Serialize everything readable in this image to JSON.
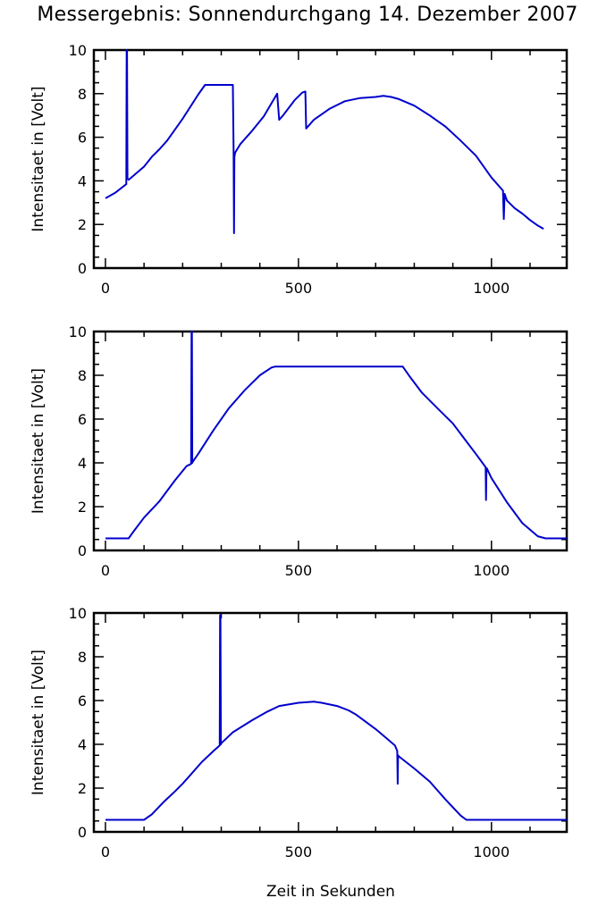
{
  "title": "Messergebnis: Sonnendurchgang 14. Dezember 2007",
  "xlabel": "Zeit in Sekunden",
  "colors": {
    "series": "#0000cc",
    "axes": "#000000"
  },
  "chart_data": [
    {
      "type": "line",
      "ylabel": "Intensitaet in [Volt]",
      "xlim": [
        -30,
        1195
      ],
      "ylim": [
        0,
        10
      ],
      "xticks": [
        0,
        500,
        1000
      ],
      "yticks": [
        0,
        2,
        4,
        6,
        8,
        10
      ],
      "grid": false,
      "series": [
        {
          "x": [
            0,
            25,
            54,
            55,
            56,
            57,
            60,
            80,
            100,
            120,
            140,
            160,
            180,
            200,
            220,
            240,
            258,
            290,
            330,
            332,
            333,
            334,
            336,
            350,
            380,
            410,
            445,
            450,
            460,
            490,
            510,
            518,
            520,
            540,
            580,
            620,
            660,
            700,
            720,
            740,
            760,
            800,
            840,
            880,
            920,
            960,
            1000,
            1030,
            1032,
            1034,
            1040,
            1060,
            1080,
            1100,
            1120,
            1135
          ],
          "y": [
            3.2,
            3.45,
            3.85,
            10,
            10,
            4.1,
            4.05,
            4.35,
            4.65,
            5.1,
            5.45,
            5.85,
            6.35,
            6.85,
            7.4,
            7.95,
            8.4,
            8.4,
            8.4,
            5.5,
            1.6,
            5.1,
            5.3,
            5.7,
            6.3,
            6.95,
            8.0,
            6.8,
            7.0,
            7.7,
            8.05,
            8.1,
            6.4,
            6.8,
            7.3,
            7.65,
            7.8,
            7.85,
            7.9,
            7.85,
            7.75,
            7.45,
            7.0,
            6.5,
            5.85,
            5.15,
            4.15,
            3.55,
            2.25,
            3.4,
            3.1,
            2.75,
            2.5,
            2.2,
            1.95,
            1.8
          ]
        }
      ]
    },
    {
      "type": "line",
      "ylabel": "Intensitaet in [Volt]",
      "xlim": [
        -30,
        1195
      ],
      "ylim": [
        0,
        10
      ],
      "xticks": [
        0,
        500,
        1000
      ],
      "yticks": [
        0,
        2,
        4,
        6,
        8,
        10
      ],
      "grid": false,
      "series": [
        {
          "x": [
            0,
            60,
            70,
            100,
            140,
            180,
            210,
            222,
            223,
            224,
            225,
            226,
            240,
            280,
            320,
            360,
            400,
            430,
            440,
            770,
            780,
            790,
            820,
            860,
            900,
            930,
            960,
            985,
            986,
            987,
            988,
            1000,
            1040,
            1080,
            1120,
            1140,
            1195
          ],
          "y": [
            0.55,
            0.55,
            0.8,
            1.5,
            2.25,
            3.2,
            3.85,
            3.95,
            10,
            10,
            4.0,
            4.05,
            4.4,
            5.5,
            6.5,
            7.3,
            8.0,
            8.35,
            8.4,
            8.4,
            8.15,
            7.9,
            7.2,
            6.5,
            5.8,
            5.1,
            4.4,
            3.8,
            2.3,
            3.7,
            3.75,
            3.3,
            2.2,
            1.25,
            0.65,
            0.55,
            0.55
          ]
        }
      ]
    },
    {
      "type": "line",
      "ylabel": "Intensitaet in [Volt]",
      "xlim": [
        -30,
        1195
      ],
      "ylim": [
        0,
        10
      ],
      "xticks": [
        0,
        500,
        1000
      ],
      "yticks": [
        0,
        2,
        4,
        6,
        8,
        10
      ],
      "grid": false,
      "series": [
        {
          "x": [
            0,
            100,
            120,
            150,
            180,
            200,
            220,
            250,
            280,
            296,
            297,
            298,
            299,
            300,
            330,
            380,
            420,
            450,
            500,
            540,
            560,
            600,
            630,
            650,
            700,
            730,
            750,
            756,
            757,
            758,
            760,
            800,
            840,
            880,
            920,
            935,
            1000,
            1100,
            1195
          ],
          "y": [
            0.55,
            0.55,
            0.8,
            1.35,
            1.85,
            2.2,
            2.6,
            3.2,
            3.7,
            3.95,
            9.9,
            9.9,
            4.0,
            4.05,
            4.55,
            5.1,
            5.5,
            5.75,
            5.9,
            5.95,
            5.9,
            5.75,
            5.55,
            5.35,
            4.7,
            4.25,
            3.95,
            3.7,
            2.2,
            3.5,
            3.45,
            2.9,
            2.3,
            1.5,
            0.75,
            0.55,
            0.55,
            0.55,
            0.55
          ]
        }
      ]
    }
  ]
}
